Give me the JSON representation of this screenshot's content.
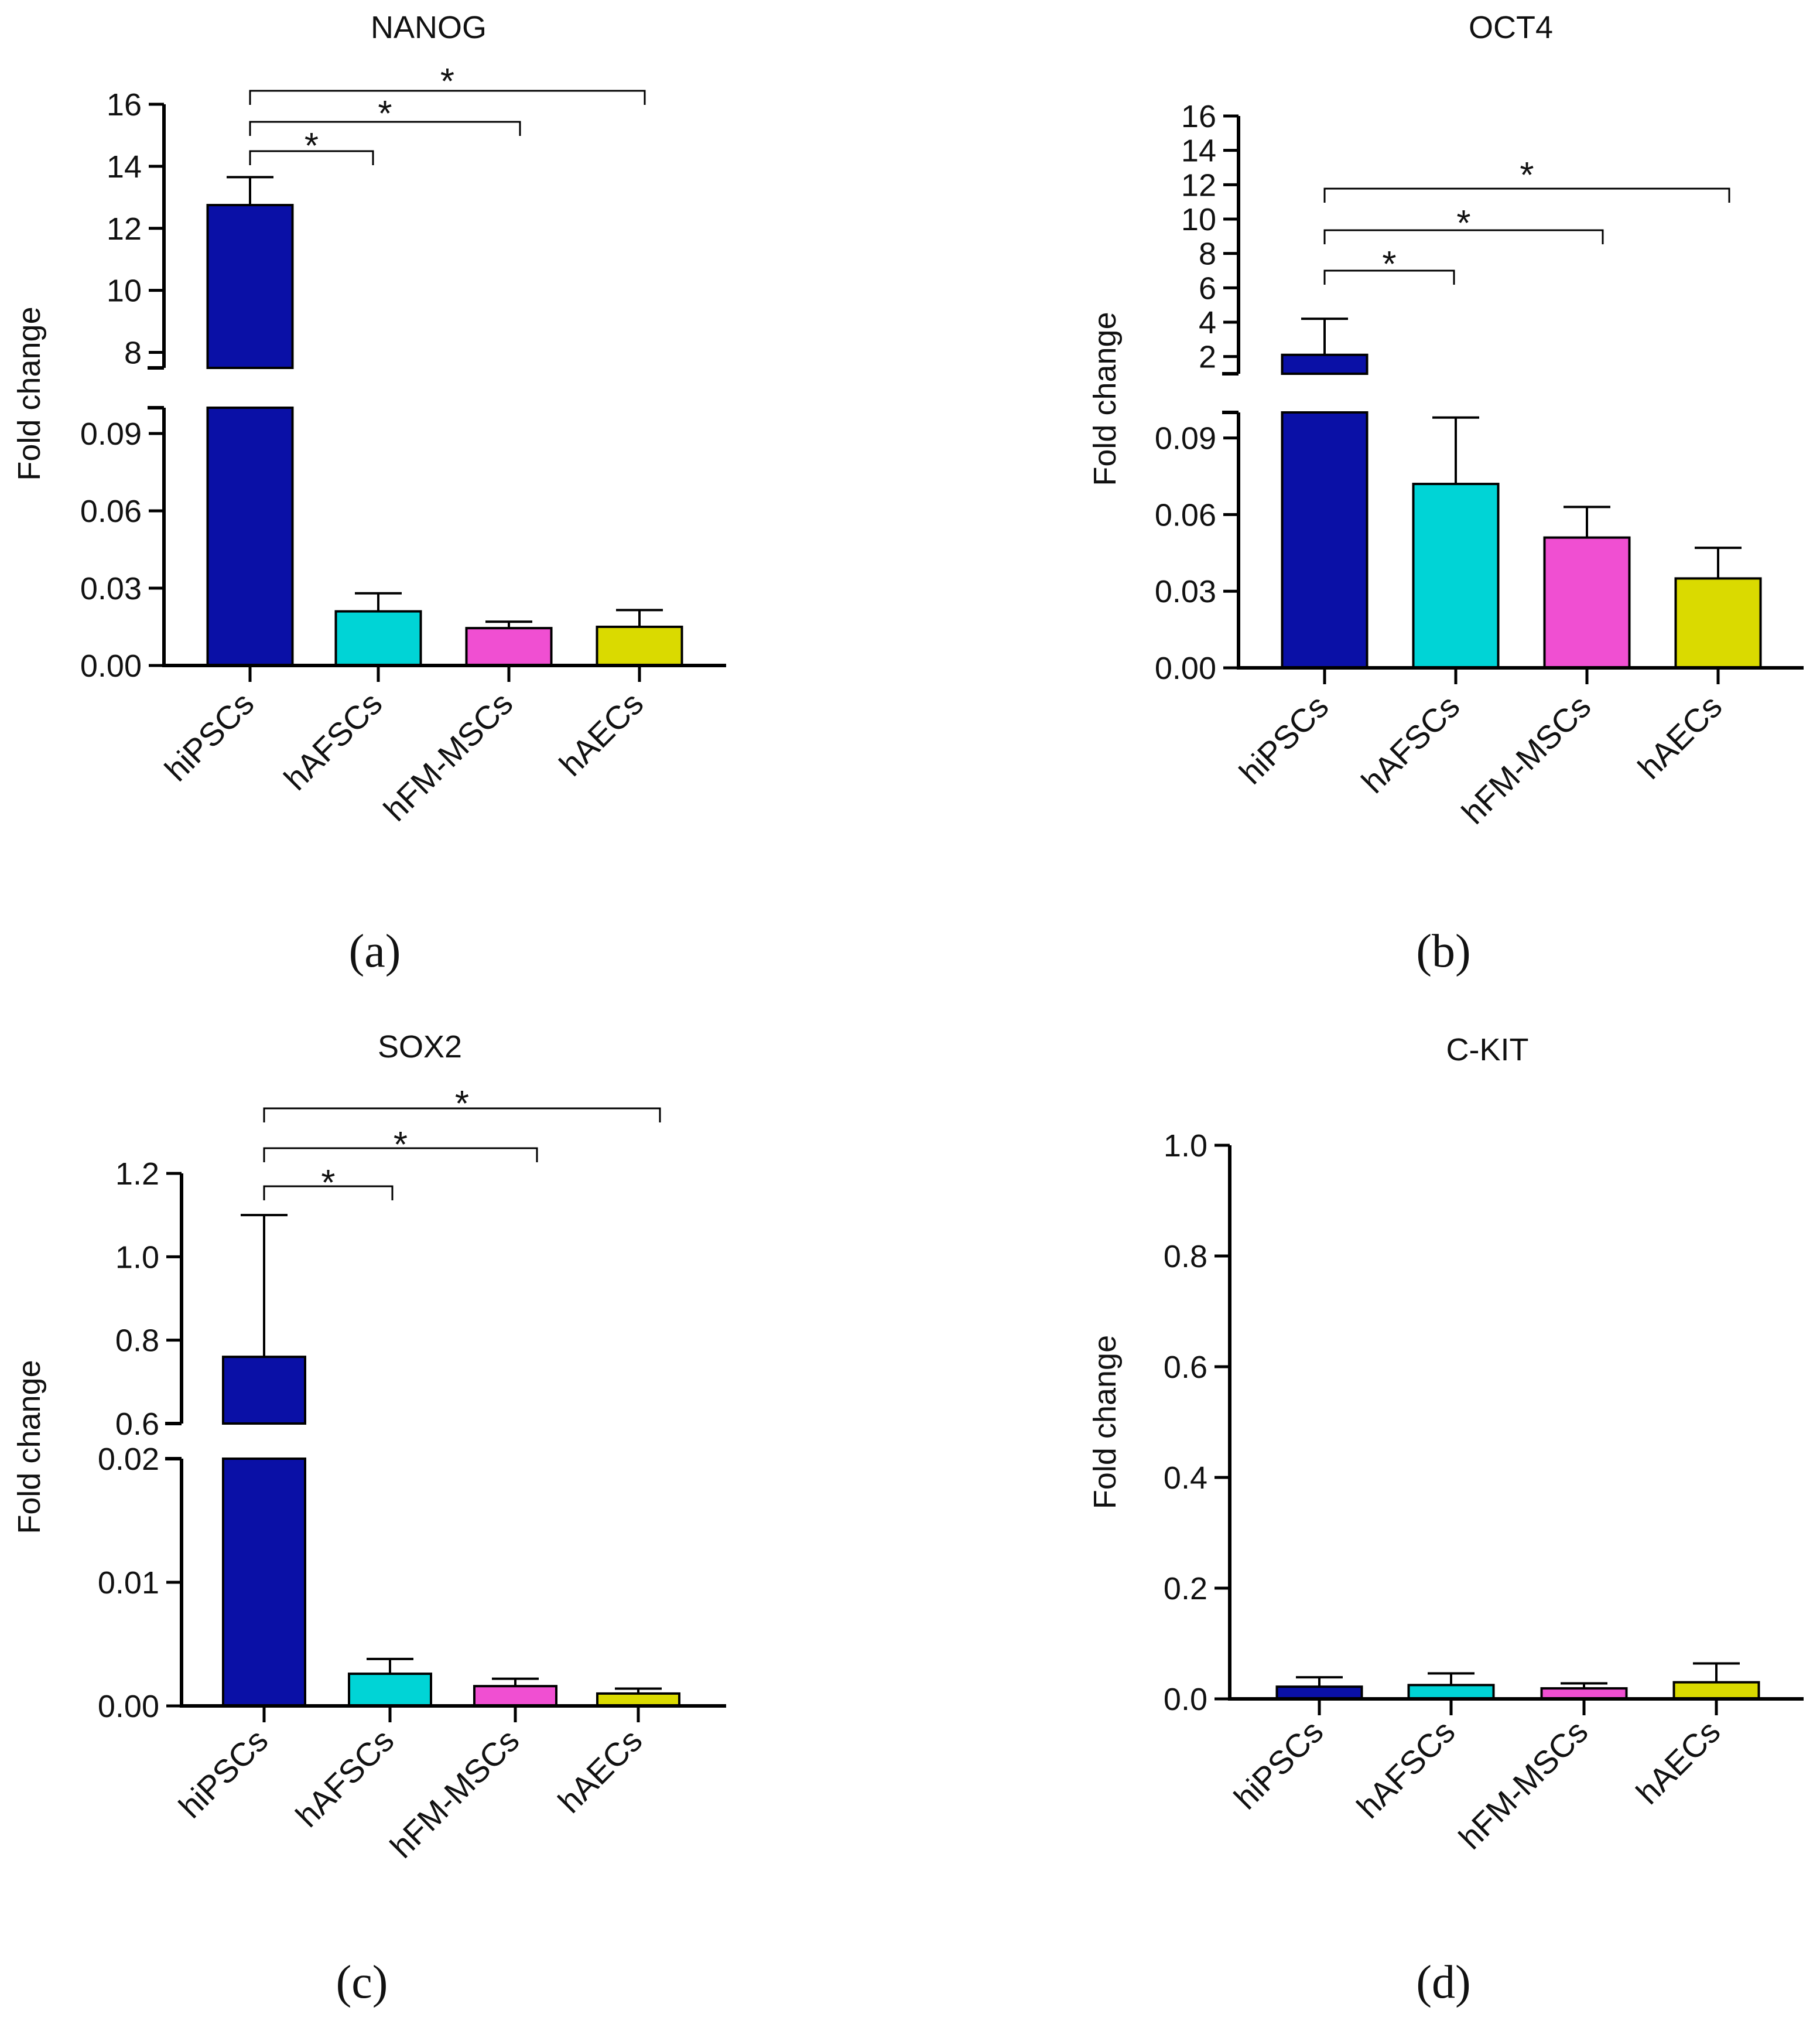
{
  "figure": {
    "panel_labels": [
      "(a)",
      "(b)",
      "(c)",
      "(d)"
    ]
  },
  "chart_data": [
    {
      "type": "bar",
      "panel": "(a)",
      "title": "NANOG",
      "ylabel": "Fold change",
      "categories": [
        "hiPSCs",
        "hAFSCs",
        "hFM-MSCs",
        "hAECs"
      ],
      "values": [
        12.75,
        0.021,
        0.0145,
        0.015
      ],
      "errors": [
        0.9,
        0.007,
        0.0025,
        0.0065
      ],
      "colors": [
        "#0a10a6",
        "#00d4d6",
        "#f04fd2",
        "#dada00"
      ],
      "axis_break": true,
      "lower_range": [
        0,
        0.1
      ],
      "upper_range": [
        7.5,
        16
      ],
      "lower_ticks": [
        "0.00",
        "0.03",
        "0.06",
        "0.09"
      ],
      "upper_ticks": [
        "8",
        "10",
        "12",
        "14",
        "16"
      ],
      "significance": [
        {
          "from": "hiPSCs",
          "to": "hAFSCs",
          "label": "*"
        },
        {
          "from": "hiPSCs",
          "to": "hFM-MSCs",
          "label": "*"
        },
        {
          "from": "hiPSCs",
          "to": "hAECs",
          "label": "*"
        }
      ]
    },
    {
      "type": "bar",
      "panel": "(b)",
      "title": "OCT4",
      "ylabel": "Fold change",
      "categories": [
        "hiPSCs",
        "hAFSCs",
        "hFM-MSCs",
        "hAECs"
      ],
      "values": [
        2.1,
        0.072,
        0.051,
        0.035
      ],
      "errors": [
        2.1,
        0.026,
        0.012,
        0.012
      ],
      "colors": [
        "#0a10a6",
        "#00d4d6",
        "#f04fd2",
        "#dada00"
      ],
      "axis_break": true,
      "lower_range": [
        0,
        0.1
      ],
      "upper_range": [
        1,
        16
      ],
      "lower_ticks": [
        "0.00",
        "0.03",
        "0.06",
        "0.09"
      ],
      "upper_ticks": [
        "2",
        "4",
        "6",
        "8",
        "10",
        "12",
        "14",
        "16"
      ],
      "significance": [
        {
          "from": "hiPSCs",
          "to": "hAFSCs",
          "label": "*"
        },
        {
          "from": "hiPSCs",
          "to": "hFM-MSCs",
          "label": "*"
        },
        {
          "from": "hiPSCs",
          "to": "hAECs",
          "label": "*"
        }
      ]
    },
    {
      "type": "bar",
      "panel": "(c)",
      "title": "SOX2",
      "ylabel": "Fold change",
      "categories": [
        "hiPSCs",
        "hAFSCs",
        "hFM-MSCs",
        "hAECs"
      ],
      "values": [
        0.76,
        0.0026,
        0.0016,
        0.001
      ],
      "errors": [
        0.34,
        0.0012,
        0.0006,
        0.0004
      ],
      "colors": [
        "#0a10a6",
        "#00d4d6",
        "#f04fd2",
        "#dada00"
      ],
      "axis_break": true,
      "lower_range": [
        0,
        0.02
      ],
      "upper_range": [
        0.6,
        1.2
      ],
      "lower_ticks": [
        "0.00",
        "0.01",
        "0.02"
      ],
      "upper_ticks": [
        "0.6",
        "0.8",
        "1.0",
        "1.2"
      ],
      "significance": [
        {
          "from": "hiPSCs",
          "to": "hAFSCs",
          "label": "*"
        },
        {
          "from": "hiPSCs",
          "to": "hFM-MSCs",
          "label": "*"
        },
        {
          "from": "hiPSCs",
          "to": "hAECs",
          "label": "*"
        }
      ]
    },
    {
      "type": "bar",
      "panel": "(d)",
      "title": "C-KIT",
      "ylabel": "Fold change",
      "categories": [
        "hiPSCs",
        "hAFSCs",
        "hFM-MSCs",
        "hAECs"
      ],
      "values": [
        0.022,
        0.025,
        0.019,
        0.03
      ],
      "errors": [
        0.017,
        0.021,
        0.009,
        0.034
      ],
      "colors": [
        "#0a10a6",
        "#00d4d6",
        "#f04fd2",
        "#dada00"
      ],
      "axis_break": false,
      "range": [
        0,
        1.0
      ],
      "ticks": [
        "0.0",
        "0.2",
        "0.4",
        "0.6",
        "0.8",
        "1.0"
      ],
      "significance": []
    }
  ]
}
